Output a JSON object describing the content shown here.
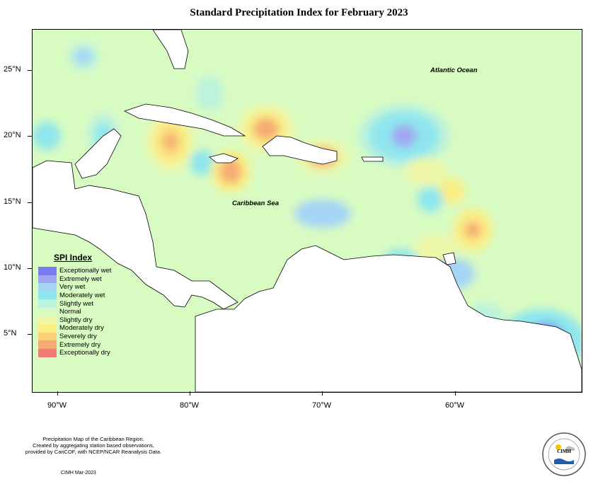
{
  "title": "Standard Precipitation Index for February 2023",
  "axes": {
    "x_ticks": [
      "90°W",
      "80°W",
      "70°W",
      "60°W"
    ],
    "y_ticks": [
      "25°N",
      "20°N",
      "15°N",
      "10°N",
      "5°N"
    ]
  },
  "map_labels": {
    "atlantic": "Atlantic Ocean",
    "caribbean": "Caribbean Sea"
  },
  "legend": {
    "title": "SPI Index",
    "items": [
      {
        "label": "Exceptionally wet",
        "color": "#7b7bf0"
      },
      {
        "label": "Extremely wet",
        "color": "#a0a6f2"
      },
      {
        "label": "Very wet",
        "color": "#a6d4f7"
      },
      {
        "label": "Moderately wet",
        "color": "#8ee6ee"
      },
      {
        "label": "Slightly wet",
        "color": "#bdf3dc"
      },
      {
        "label": "Normal",
        "color": "#d8fbc2"
      },
      {
        "label": "Slightly dry",
        "color": "#eef7a8"
      },
      {
        "label": "Moderately dry",
        "color": "#fbee84"
      },
      {
        "label": "Severely dry",
        "color": "#f9d27a"
      },
      {
        "label": "Extremely dry",
        "color": "#f6ab72"
      },
      {
        "label": "Exceptionally dry",
        "color": "#f27a72"
      }
    ]
  },
  "footer": {
    "line1": "Precipitation Map of the Caribbean Region.",
    "line2": "Created by aggregating station based observations,",
    "line3": "provided by CariCOF, with NCEP/NCAR Reanalysis Data.",
    "credit": "CIMH Mar-2023"
  },
  "logo": {
    "text": "CIMH"
  }
}
